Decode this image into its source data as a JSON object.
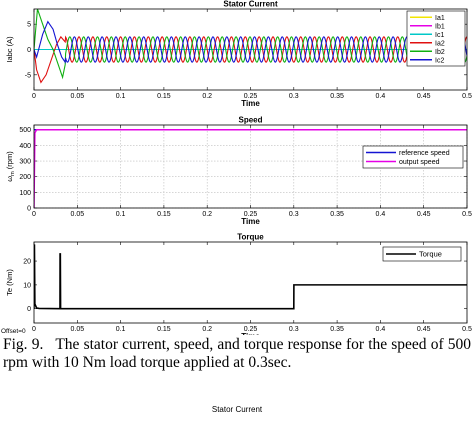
{
  "chart_data": [
    {
      "type": "line",
      "title": "Stator Current",
      "xlabel": "Time",
      "ylabel": "Iabc (A)",
      "xlim": [
        0,
        0.5
      ],
      "ylim": [
        -8,
        8
      ],
      "xticks": [
        "0",
        "0.05",
        "0.1",
        "0.15",
        "0.2",
        "0.25",
        "0.3",
        "0.35",
        "0.4",
        "0.45",
        "0.5"
      ],
      "yticks": [
        "-5",
        "0",
        "5"
      ],
      "grid": false,
      "legend": "top-right",
      "series": [
        {
          "name": "Ia1",
          "color": "#f2e600",
          "x": [
            0,
            0.5
          ],
          "y": [
            0,
            0
          ]
        },
        {
          "name": "Ib1",
          "color": "#e600e6",
          "x": [
            0,
            0.5
          ],
          "y": [
            0,
            0
          ]
        },
        {
          "name": "Ic1",
          "color": "#00c8c8",
          "x": [
            0,
            0.5
          ],
          "y": [
            0,
            0
          ]
        },
        {
          "name": "Ia2",
          "color": "#e01010",
          "x": [
            0,
            0.003,
            0.008,
            0.014,
            0.02,
            0.026,
            0.031,
            0.036,
            0.5
          ],
          "y": [
            0,
            -4,
            -6.5,
            -5,
            -2,
            1,
            2.5,
            1.5,
            0
          ],
          "steady_amplitude": 2.5,
          "steady_frequency_hz": 62.5,
          "phase_deg": 0
        },
        {
          "name": "Ib2",
          "color": "#10b010",
          "x": [
            0,
            0.004,
            0.01,
            0.016,
            0.022,
            0.028,
            0.033,
            0.036,
            0.5
          ],
          "y": [
            0,
            8,
            5,
            2,
            0,
            -3,
            -5.5,
            -3,
            0
          ],
          "steady_amplitude": 2.5,
          "steady_frequency_hz": 62.5,
          "phase_deg": 120
        },
        {
          "name": "Ic2",
          "color": "#1414d2",
          "x": [
            0,
            0.003,
            0.01,
            0.016,
            0.022,
            0.027,
            0.032,
            0.036,
            0.5
          ],
          "y": [
            0,
            -1.5,
            3,
            5.5,
            4,
            1,
            -1.5,
            -2.5,
            0
          ],
          "steady_amplitude": 2.5,
          "steady_frequency_hz": 62.5,
          "phase_deg": 240
        }
      ]
    },
    {
      "type": "line",
      "title": "Speed",
      "xlabel": "Time",
      "ylabel": "ω_m (rpm)",
      "ylabel_parts": [
        "ω",
        "m",
        " (rpm)"
      ],
      "xlim": [
        0,
        0.5
      ],
      "ylim": [
        0,
        530
      ],
      "xticks": [
        "0",
        "0.05",
        "0.1",
        "0.15",
        "0.2",
        "0.25",
        "0.3",
        "0.35",
        "0.4",
        "0.45",
        "0.5"
      ],
      "yticks": [
        "0",
        "100",
        "200",
        "300",
        "400",
        "500"
      ],
      "grid": true,
      "legend": "middle-right",
      "series": [
        {
          "name": "reference speed",
          "color": "#1414d2",
          "x": [
            0,
            0.5
          ],
          "y": [
            500,
            500
          ]
        },
        {
          "name": "output speed",
          "color": "#e600e6",
          "x": [
            0,
            0.001,
            0.003,
            0.5
          ],
          "y": [
            0,
            480,
            500,
            500
          ]
        }
      ]
    },
    {
      "type": "line",
      "title": "Torque",
      "xlabel": "Time",
      "ylabel": "Te (Nm)",
      "xlim": [
        0,
        0.5
      ],
      "ylim": [
        -6,
        28
      ],
      "xticks": [
        "0",
        "0.05",
        "0.1",
        "0.15",
        "0.2",
        "0.25",
        "0.3",
        "0.35",
        "0.4",
        "0.45",
        "0.5"
      ],
      "yticks": [
        "0",
        "10",
        "20"
      ],
      "grid": false,
      "legend": "top-right",
      "offset_label": "Offset=0",
      "series": [
        {
          "name": "Torque",
          "color": "#000000",
          "x": [
            0,
            0.0005,
            0.001,
            0.003,
            0.006,
            0.03,
            0.0301,
            0.0304,
            0.0307,
            0.031,
            0.3,
            0.3001,
            0.5
          ],
          "y": [
            0,
            27,
            2,
            0.3,
            0.1,
            0,
            23,
            23,
            0,
            0,
            0,
            10,
            10
          ]
        }
      ]
    }
  ],
  "caption": {
    "number": "Fig. 9.",
    "text": "The stator current, speed, and torque response for the speed of 500 rpm with 10 Nm load torque applied at 0.3sec."
  },
  "next_figure_title": "Stator Current"
}
